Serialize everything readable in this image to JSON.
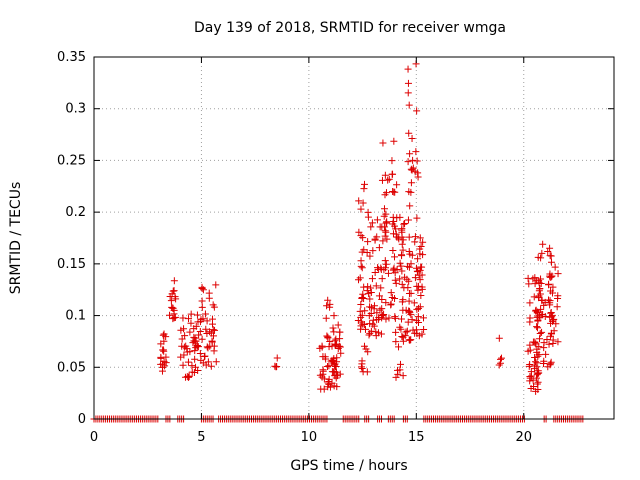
{
  "chart_data": {
    "type": "scatter",
    "title": "Day 139 of 2018, SRMTID for receiver wmga",
    "xlabel": "GPS time / hours",
    "ylabel": "SRMTID / TECUs",
    "xlim": [
      0,
      24.2
    ],
    "ylim": [
      0,
      0.35
    ],
    "grid": true,
    "marker": "+",
    "color": "#dd0000",
    "x_ticks": [
      0,
      5,
      10,
      15,
      20
    ],
    "x_tick_labels": [
      "0",
      "5",
      "10",
      "15",
      "20"
    ],
    "y_ticks": [
      0,
      0.05,
      0.1,
      0.15,
      0.2,
      0.25,
      0.3,
      0.35
    ],
    "y_tick_labels": [
      "0",
      "0.05",
      "0.1",
      "0.15",
      "0.2",
      "0.25",
      "0.3",
      "0.35"
    ],
    "clusters": [
      {
        "x_range": [
          3.1,
          3.4
        ],
        "y_range": [
          0.045,
          0.085
        ],
        "count": 18
      },
      {
        "x_range": [
          3.5,
          3.8
        ],
        "y_range": [
          0.095,
          0.135
        ],
        "count": 18
      },
      {
        "x_range": [
          4.0,
          4.5
        ],
        "y_range": [
          0.04,
          0.1
        ],
        "count": 22
      },
      {
        "x_range": [
          4.5,
          5.0
        ],
        "y_range": [
          0.04,
          0.11
        ],
        "count": 26
      },
      {
        "x_range": [
          4.9,
          5.7
        ],
        "y_range": [
          0.05,
          0.13
        ],
        "count": 40
      },
      {
        "x_range": [
          8.4,
          8.6
        ],
        "y_range": [
          0.05,
          0.065
        ],
        "count": 4
      },
      {
        "x_range": [
          10.5,
          11.3
        ],
        "y_range": [
          0.028,
          0.075
        ],
        "count": 40
      },
      {
        "x_range": [
          10.8,
          11.0
        ],
        "y_range": [
          0.07,
          0.115
        ],
        "count": 10
      },
      {
        "x_range": [
          11.1,
          11.5
        ],
        "y_range": [
          0.04,
          0.1
        ],
        "count": 22
      },
      {
        "x_range": [
          12.3,
          12.6
        ],
        "y_range": [
          0.09,
          0.23
        ],
        "count": 30
      },
      {
        "x_range": [
          12.4,
          12.8
        ],
        "y_range": [
          0.045,
          0.1
        ],
        "count": 12
      },
      {
        "x_range": [
          12.7,
          13.4
        ],
        "y_range": [
          0.08,
          0.2
        ],
        "count": 55
      },
      {
        "x_range": [
          13.4,
          14.1
        ],
        "y_range": [
          0.09,
          0.275
        ],
        "count": 50
      },
      {
        "x_range": [
          13.9,
          14.4
        ],
        "y_range": [
          0.04,
          0.2
        ],
        "count": 38
      },
      {
        "x_range": [
          14.3,
          14.7
        ],
        "y_range": [
          0.07,
          0.2
        ],
        "count": 28
      },
      {
        "x_range": [
          14.6,
          15.1
        ],
        "y_range": [
          0.075,
          0.345
        ],
        "count": 45
      },
      {
        "x_range": [
          15.0,
          15.35
        ],
        "y_range": [
          0.08,
          0.18
        ],
        "count": 32
      },
      {
        "x_range": [
          18.8,
          19.0
        ],
        "y_range": [
          0.045,
          0.08
        ],
        "count": 5
      },
      {
        "x_range": [
          20.2,
          20.8
        ],
        "y_range": [
          0.025,
          0.14
        ],
        "count": 55
      },
      {
        "x_range": [
          20.6,
          21.3
        ],
        "y_range": [
          0.05,
          0.17
        ],
        "count": 55
      },
      {
        "x_range": [
          21.2,
          21.6
        ],
        "y_range": [
          0.07,
          0.15
        ],
        "count": 28
      }
    ],
    "zero_segments": [
      [
        0.0,
        3.0
      ],
      [
        3.35,
        3.55
      ],
      [
        3.9,
        4.25
      ],
      [
        5.0,
        5.6
      ],
      [
        5.8,
        10.85
      ],
      [
        11.6,
        12.35
      ],
      [
        12.6,
        12.85
      ],
      [
        13.2,
        13.45
      ],
      [
        13.7,
        14.05
      ],
      [
        14.4,
        14.65
      ],
      [
        15.35,
        20.1
      ],
      [
        20.95,
        21.1
      ],
      [
        21.4,
        22.8
      ]
    ]
  }
}
